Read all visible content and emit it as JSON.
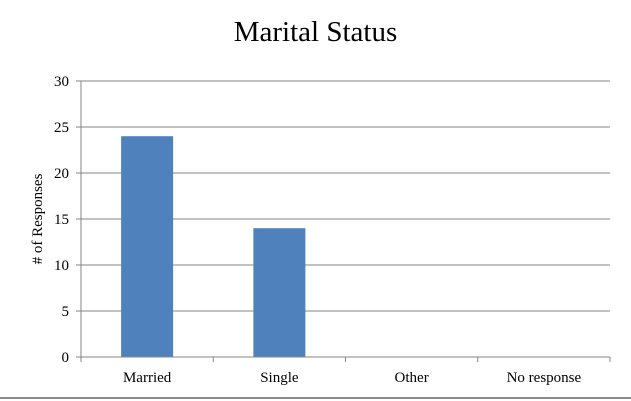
{
  "colors": {
    "bar": "#4f81bd",
    "gridline": "#868686",
    "axis": "#868686",
    "background": "#ffffff"
  },
  "chart_data": {
    "type": "bar",
    "title": "Marital Status",
    "xlabel": "",
    "ylabel": "# of Responses",
    "categories": [
      "Married",
      "Single",
      "Other",
      "No response"
    ],
    "values": [
      24,
      14,
      0,
      0
    ],
    "yticks": [
      0,
      5,
      10,
      15,
      20,
      25,
      30
    ],
    "ylim": [
      0,
      30
    ],
    "grid": true,
    "legend": "none"
  }
}
